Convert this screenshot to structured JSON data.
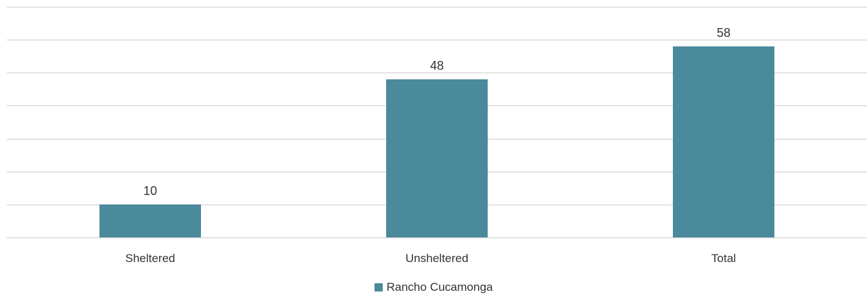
{
  "chart_data": {
    "type": "bar",
    "categories": [
      "Sheltered",
      "Unsheltered",
      "Total"
    ],
    "series": [
      {
        "name": "Rancho Cucamonga",
        "values": [
          10,
          48,
          58
        ],
        "color": "#4a8a9b"
      }
    ],
    "data_labels": [
      "10",
      "48",
      "58"
    ],
    "ylim": [
      0,
      70
    ],
    "gridlines": [
      0,
      10,
      20,
      30,
      40,
      50,
      60,
      70
    ],
    "grid": true,
    "legend_position": "bottom",
    "gridline_color": "#d9d9d9",
    "title": "",
    "xlabel": "",
    "ylabel": ""
  }
}
